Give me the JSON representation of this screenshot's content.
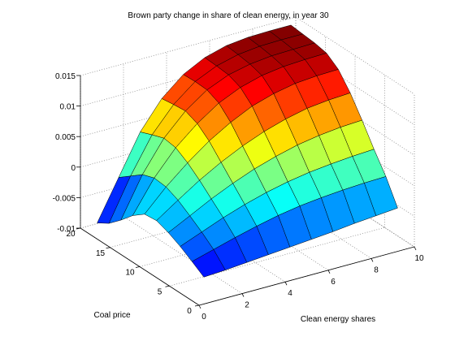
{
  "chart_data": {
    "type": "surface",
    "title": "Brown party change in share of clean energy, in year 30",
    "xlabel": "Clean energy shares",
    "ylabel": "Coal price",
    "zlabel": "",
    "xlim": [
      0,
      10
    ],
    "ylim": [
      0,
      20
    ],
    "zlim": [
      -0.01,
      0.015
    ],
    "xticks": [
      0,
      2,
      4,
      6,
      8,
      10
    ],
    "yticks": [
      0,
      5,
      10,
      15,
      20
    ],
    "zticks": [
      -0.01,
      -0.005,
      0,
      0.005,
      0.01,
      0.015
    ],
    "zticklabels": [
      "-0.01",
      "-0.005",
      "0",
      "0.005",
      "0.01",
      "0.015"
    ],
    "colormap": "jet",
    "grid": true,
    "x": [
      0.5,
      1.5,
      2.5,
      3.5,
      4.5,
      5.5,
      6.5,
      7.5,
      8.5,
      9.5
    ],
    "y": [
      1,
      3,
      5,
      7,
      9,
      11,
      13,
      15,
      17,
      19
    ],
    "z": [
      [
        -0.0065,
        -0.0063,
        -0.006,
        -0.0057,
        -0.0054,
        -0.0051,
        -0.0048,
        -0.0044,
        -0.0041,
        -0.0038
      ],
      [
        -0.0052,
        -0.0042,
        -0.0032,
        -0.0023,
        -0.0015,
        -0.0009,
        -0.0005,
        -0.0002,
        0.0,
        0.0001
      ],
      [
        -0.004,
        -0.0026,
        -0.0012,
        0.0,
        0.001,
        0.0018,
        0.0024,
        0.0028,
        0.0031,
        0.0033
      ],
      [
        -0.003,
        -0.0012,
        0.0006,
        0.0022,
        0.0036,
        0.0047,
        0.0056,
        0.0062,
        0.0066,
        0.0068
      ],
      [
        -0.0023,
        0.0001,
        0.0024,
        0.0044,
        0.0061,
        0.0075,
        0.0086,
        0.0094,
        0.0098,
        0.01
      ],
      [
        -0.0025,
        0.001,
        0.004,
        0.0066,
        0.0087,
        0.0104,
        0.0115,
        0.0122,
        0.0125,
        0.0126
      ],
      [
        -0.004,
        0.0012,
        0.0052,
        0.0082,
        0.0106,
        0.0122,
        0.0132,
        0.0137,
        0.0139,
        0.014
      ],
      [
        -0.006,
        0.0005,
        0.0055,
        0.009,
        0.0115,
        0.013,
        0.0138,
        0.0142,
        0.0143,
        0.0144
      ],
      [
        -0.0078,
        -0.001,
        0.0048,
        0.0088,
        0.0116,
        0.0132,
        0.0141,
        0.0145,
        0.0146,
        0.0146
      ],
      [
        -0.009,
        -0.0025,
        0.004,
        0.0085,
        0.0115,
        0.0133,
        0.0143,
        0.0147,
        0.0148,
        0.0148
      ]
    ]
  }
}
